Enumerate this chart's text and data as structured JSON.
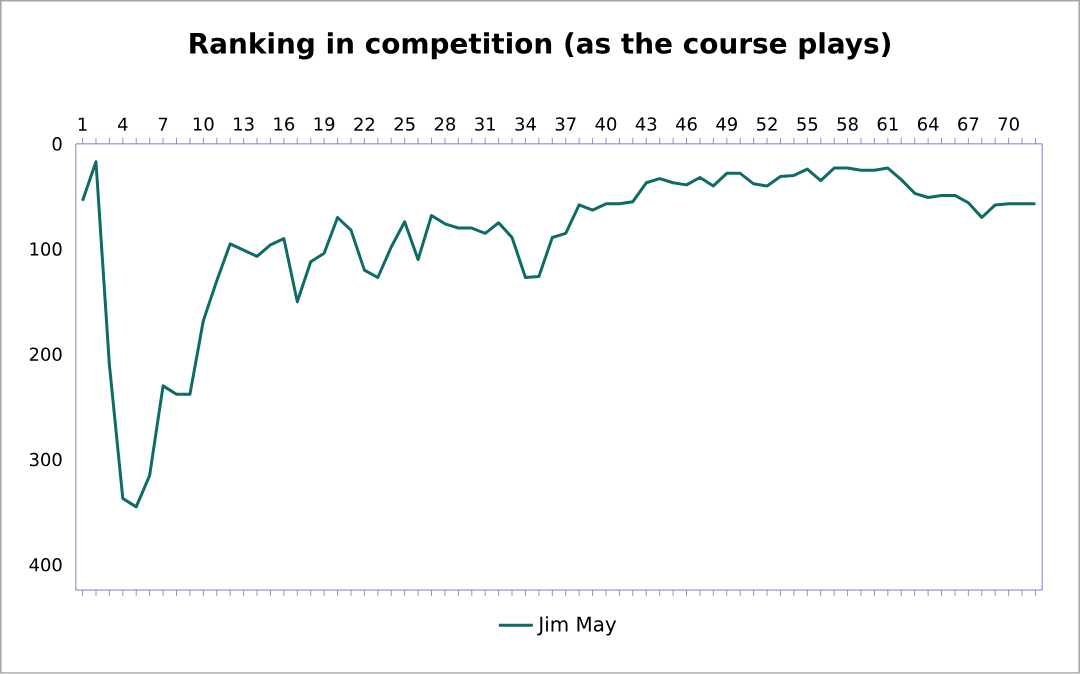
{
  "chart_data": {
    "type": "line",
    "title": "Ranking in competition (as the course plays)",
    "categories": [
      "1",
      null,
      null,
      "4",
      null,
      null,
      "7",
      null,
      null,
      "10",
      null,
      null,
      "13",
      null,
      null,
      "16",
      null,
      null,
      "19",
      null,
      null,
      "22",
      null,
      null,
      "25",
      null,
      null,
      "28",
      null,
      null,
      "31",
      null,
      null,
      "34",
      null,
      null,
      "37",
      null,
      null,
      "40",
      null,
      null,
      "43",
      null,
      null,
      "46",
      null,
      null,
      "49",
      null,
      null,
      "52",
      null,
      null,
      "55",
      null,
      null,
      "58",
      null,
      null,
      "61",
      null,
      null,
      "64",
      null,
      null,
      "67",
      null,
      null,
      "70",
      null,
      null
    ],
    "series": [
      {
        "name": "Jim May",
        "color": "#0e6b66",
        "values": [
          54,
          17,
          210,
          337,
          345,
          315,
          230,
          238,
          238,
          168,
          130,
          95,
          101,
          107,
          96,
          90,
          150,
          112,
          104,
          70,
          82,
          120,
          127,
          98,
          74,
          110,
          68,
          76,
          80,
          80,
          85,
          75,
          89,
          127,
          126,
          89,
          85,
          58,
          63,
          57,
          57,
          55,
          37,
          33,
          37,
          39,
          32,
          40,
          28,
          28,
          38,
          40,
          31,
          30,
          24,
          35,
          23,
          23,
          25,
          25,
          23,
          34,
          47,
          51,
          49,
          49,
          56,
          70,
          58,
          57,
          57,
          57
        ]
      }
    ],
    "ylim": [
      424,
      0
    ],
    "yticks": [
      0,
      100,
      200,
      300,
      400
    ],
    "legend": "bottom"
  }
}
